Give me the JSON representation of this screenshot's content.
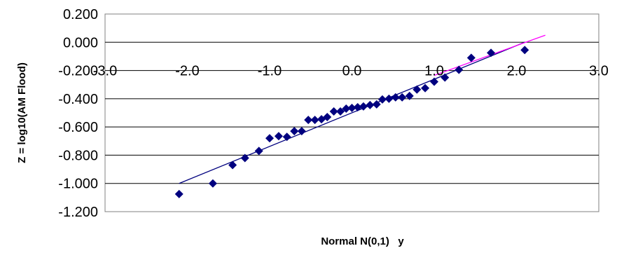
{
  "chart_data": {
    "type": "scatter",
    "xlabel": "Normal N(0,1)   y",
    "ylabel": "Z = log10(AM Flood)",
    "xlim": [
      -3.0,
      3.0
    ],
    "ylim": [
      -1.2,
      0.2
    ],
    "x_ticks": [
      -3.0,
      -2.0,
      -1.0,
      0.0,
      1.0,
      2.0,
      3.0
    ],
    "x_tick_labels": [
      "-3.0",
      "-2.0",
      "-1.0",
      "0.0",
      "1.0",
      "2.0",
      "3.0"
    ],
    "y_ticks": [
      0.2,
      0.0,
      -0.2,
      -0.4,
      -0.6,
      -0.8,
      -1.0,
      -1.2
    ],
    "y_tick_labels": [
      "0.200",
      "0.000",
      "-0.200",
      "-0.400",
      "-0.600",
      "-0.800",
      "-1.000",
      "-1.200"
    ],
    "grid": "horizontal",
    "legend": "none",
    "colors": {
      "points": "#00007f",
      "fit_line": "#00007f",
      "extrapolated_line": "#ff00ff",
      "gridline": "#000000"
    },
    "series": [
      {
        "marker": "diamond",
        "points": [
          [
            -2.1,
            -1.075
          ],
          [
            -1.69,
            -1.0
          ],
          [
            -1.45,
            -0.87
          ],
          [
            -1.3,
            -0.82
          ],
          [
            -1.13,
            -0.77
          ],
          [
            -1.0,
            -0.68
          ],
          [
            -0.89,
            -0.665
          ],
          [
            -0.79,
            -0.67
          ],
          [
            -0.7,
            -0.63
          ],
          [
            -0.61,
            -0.63
          ],
          [
            -0.53,
            -0.55
          ],
          [
            -0.45,
            -0.55
          ],
          [
            -0.37,
            -0.545
          ],
          [
            -0.3,
            -0.53
          ],
          [
            -0.22,
            -0.49
          ],
          [
            -0.14,
            -0.49
          ],
          [
            -0.07,
            -0.47
          ],
          [
            0.0,
            -0.465
          ],
          [
            0.07,
            -0.46
          ],
          [
            0.14,
            -0.455
          ],
          [
            0.22,
            -0.445
          ],
          [
            0.3,
            -0.44
          ],
          [
            0.37,
            -0.405
          ],
          [
            0.45,
            -0.4
          ],
          [
            0.53,
            -0.39
          ],
          [
            0.61,
            -0.39
          ],
          [
            0.7,
            -0.38
          ],
          [
            0.79,
            -0.335
          ],
          [
            0.89,
            -0.325
          ],
          [
            1.0,
            -0.28
          ],
          [
            1.13,
            -0.25
          ],
          [
            1.3,
            -0.195
          ],
          [
            1.45,
            -0.11
          ],
          [
            1.69,
            -0.075
          ],
          [
            2.1,
            -0.055
          ]
        ]
      }
    ],
    "lines": [
      {
        "style": "fit",
        "from": [
          -2.1,
          -1.0
        ],
        "to": [
          2.1,
          0.0
        ]
      },
      {
        "style": "extrapolated",
        "from": [
          1.0,
          -0.235
        ],
        "to": [
          2.35,
          0.05
        ]
      }
    ]
  }
}
